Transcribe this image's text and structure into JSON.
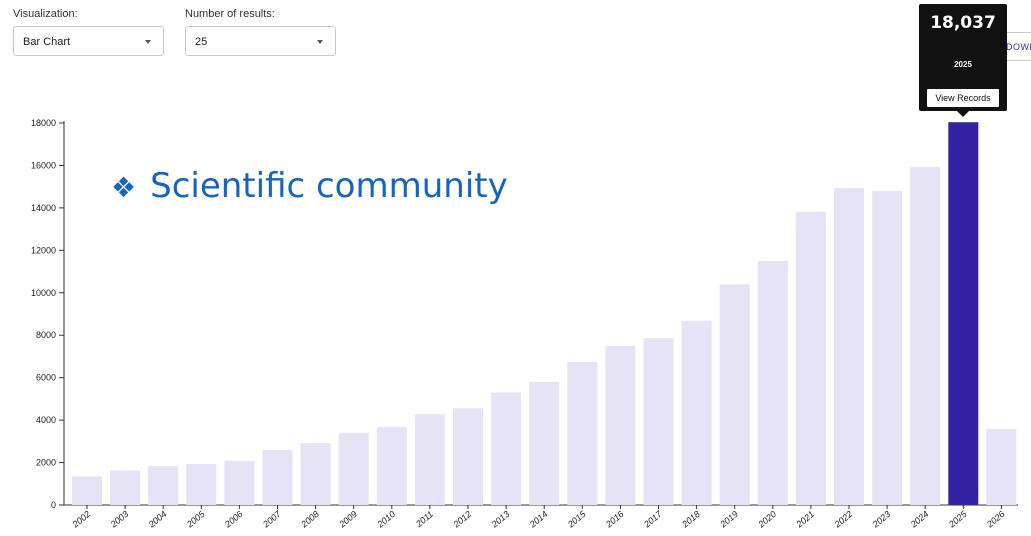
{
  "controls": {
    "visualization_label": "Visualization:",
    "visualization_value": "Bar Chart",
    "results_label": "Number of results:",
    "results_value": "25",
    "download_label": "DOWN"
  },
  "overlay": {
    "text": "Scientific community",
    "bullet": "❖",
    "color": "#1565c0"
  },
  "tooltip": {
    "value": "18,037",
    "year": "2025",
    "button": "View Records"
  },
  "colors": {
    "bar": "#e7e3f6",
    "bar_highlight": "#3323a3"
  },
  "chart_data": {
    "type": "bar",
    "categories": [
      "2002",
      "2003",
      "2004",
      "2005",
      "2006",
      "2007",
      "2008",
      "2009",
      "2010",
      "2011",
      "2012",
      "2013",
      "2014",
      "2015",
      "2016",
      "2017",
      "2018",
      "2019",
      "2020",
      "2021",
      "2022",
      "2023",
      "2024",
      "2025",
      "2026"
    ],
    "values": [
      1350,
      1630,
      1830,
      1930,
      2080,
      2600,
      2920,
      3400,
      3680,
      4280,
      4560,
      5300,
      5800,
      6740,
      7500,
      7860,
      8680,
      10400,
      11500,
      13820,
      14930,
      14800,
      15930,
      18037,
      3580
    ],
    "highlight": "2025",
    "ylim": [
      0,
      18000
    ],
    "yticks": [
      0,
      2000,
      4000,
      6000,
      8000,
      10000,
      12000,
      14000,
      16000,
      18000
    ],
    "grid": false
  }
}
